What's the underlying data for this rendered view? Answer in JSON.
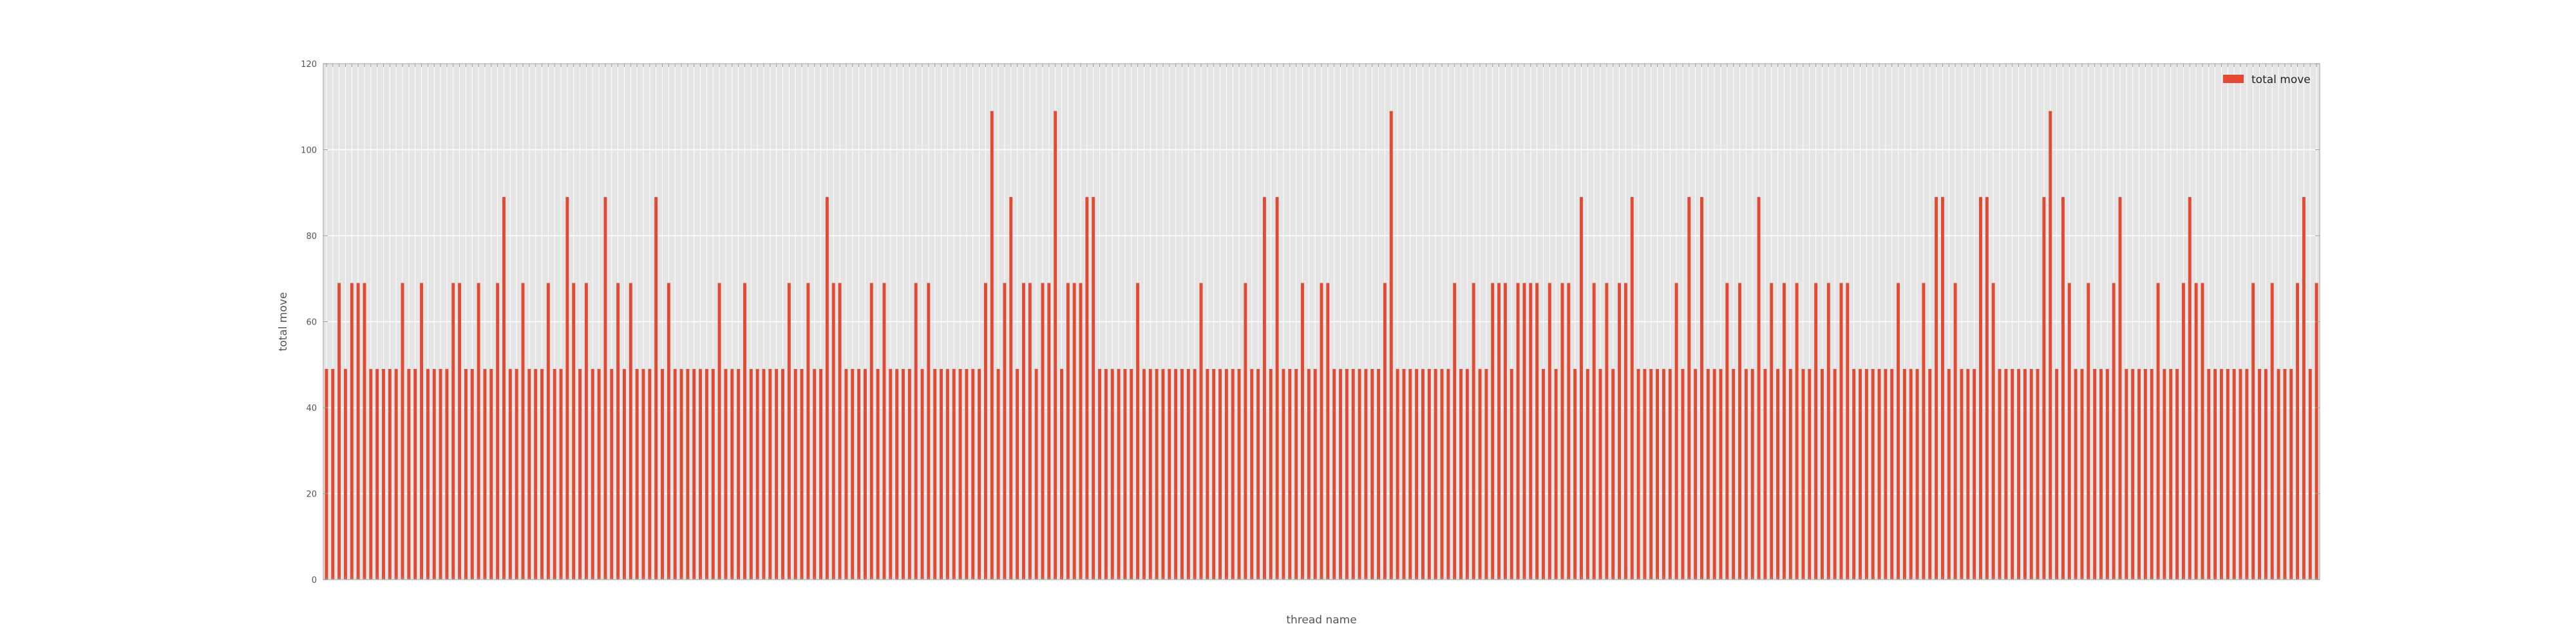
{
  "chart_data": {
    "type": "bar",
    "title": "",
    "xlabel": "thread name",
    "ylabel": "total move",
    "ylim": [
      0,
      120
    ],
    "yticks": [
      0,
      20,
      40,
      60,
      80,
      100,
      120
    ],
    "grid": true,
    "legend_position": "top-right",
    "colors": {
      "bar": "#e24a33",
      "plot_background": "#e5e5e5",
      "grid": "#ffffff"
    },
    "series": [
      {
        "name": "total move",
        "values": [
          49,
          49,
          69,
          49,
          69,
          69,
          69,
          49,
          49,
          49,
          49,
          49,
          69,
          49,
          49,
          69,
          49,
          49,
          49,
          49,
          69,
          69,
          49,
          49,
          69,
          49,
          49,
          69,
          89,
          49,
          49,
          69,
          49,
          49,
          49,
          69,
          49,
          49,
          89,
          69,
          49,
          69,
          49,
          49,
          89,
          49,
          69,
          49,
          69,
          49,
          49,
          49,
          89,
          49,
          69,
          49,
          49,
          49,
          49,
          49,
          49,
          49,
          69,
          49,
          49,
          49,
          69,
          49,
          49,
          49,
          49,
          49,
          49,
          69,
          49,
          49,
          69,
          49,
          49,
          89,
          69,
          69,
          49,
          49,
          49,
          49,
          69,
          49,
          69,
          49,
          49,
          49,
          49,
          69,
          49,
          69,
          49,
          49,
          49,
          49,
          49,
          49,
          49,
          49,
          69,
          109,
          49,
          69,
          89,
          49,
          69,
          69,
          49,
          69,
          69,
          109,
          49,
          69,
          69,
          69,
          89,
          89,
          49,
          49,
          49,
          49,
          49,
          49,
          69,
          49,
          49,
          49,
          49,
          49,
          49,
          49,
          49,
          49,
          69,
          49,
          49,
          49,
          49,
          49,
          49,
          69,
          49,
          49,
          89,
          49,
          89,
          49,
          49,
          49,
          69,
          49,
          49,
          69,
          69,
          49,
          49,
          49,
          49,
          49,
          49,
          49,
          49,
          69,
          109,
          49,
          49,
          49,
          49,
          49,
          49,
          49,
          49,
          49,
          69,
          49,
          49,
          69,
          49,
          49,
          69,
          69,
          69,
          49,
          69,
          69,
          69,
          69,
          49,
          69,
          49,
          69,
          69,
          49,
          89,
          49,
          69,
          49,
          69,
          49,
          69,
          69,
          89,
          49,
          49,
          49,
          49,
          49,
          49,
          69,
          49,
          89,
          49,
          89,
          49,
          49,
          49,
          69,
          49,
          69,
          49,
          49,
          89,
          49,
          69,
          49,
          69,
          49,
          69,
          49,
          49,
          69,
          49,
          69,
          49,
          69,
          69,
          49,
          49,
          49,
          49,
          49,
          49,
          49,
          69,
          49,
          49,
          49,
          69,
          49,
          89,
          89,
          49,
          69,
          49,
          49,
          49,
          89,
          89,
          69,
          49,
          49,
          49,
          49,
          49,
          49,
          49,
          89,
          109,
          49,
          89,
          69,
          49,
          49,
          69,
          49,
          49,
          49,
          69,
          89,
          49,
          49,
          49,
          49,
          49,
          69,
          49,
          49,
          49,
          69,
          89,
          69,
          69,
          49,
          49,
          49,
          49,
          49,
          49,
          49,
          69,
          49,
          49,
          69,
          49,
          49,
          49,
          69,
          89,
          49,
          69
        ]
      }
    ]
  }
}
